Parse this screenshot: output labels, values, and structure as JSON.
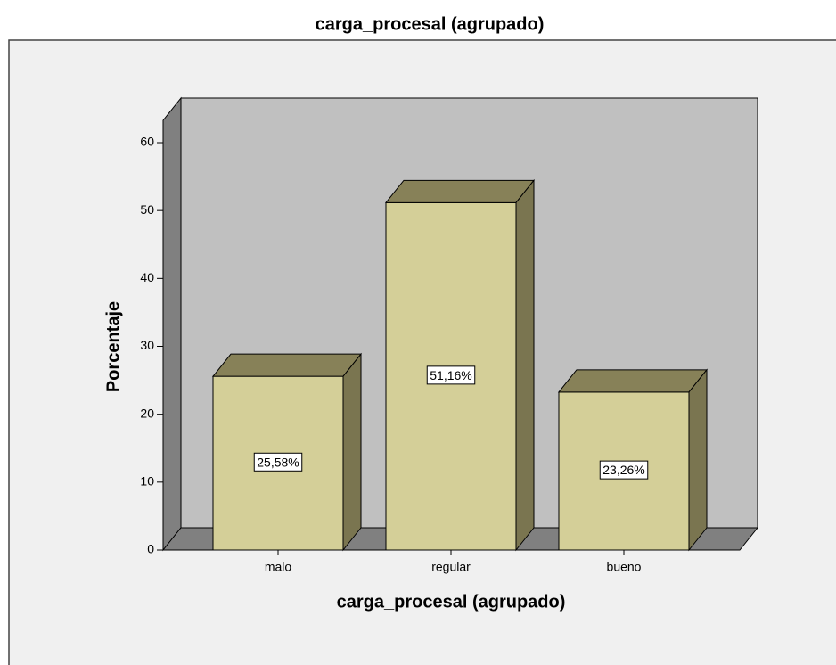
{
  "chart_data": {
    "type": "bar3d",
    "title": "carga_procesal (agrupado)",
    "xlabel": "carga_procesal (agrupado)",
    "ylabel": "Porcentaje",
    "categories": [
      "malo",
      "regular",
      "bueno"
    ],
    "values": [
      25.58,
      51.16,
      23.26
    ],
    "value_labels": [
      "25,58%",
      "51,16%",
      "23,26%"
    ],
    "color": "#d4cf98",
    "ylim": [
      0,
      60
    ],
    "yticks": [
      0,
      10,
      20,
      30,
      40,
      50,
      60
    ]
  }
}
